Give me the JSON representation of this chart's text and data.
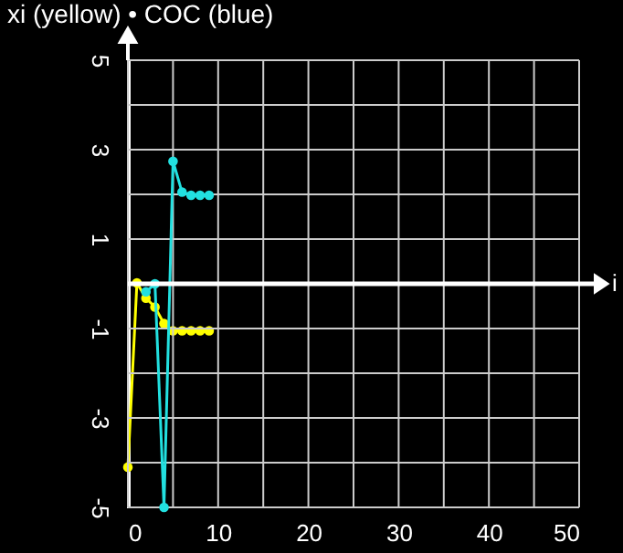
{
  "chart_data": {
    "type": "line",
    "title": "xi (yellow) • COC (blue)",
    "xlabel": "i",
    "xlim": [
      0,
      50
    ],
    "ylim": [
      -5,
      5
    ],
    "xticks": [
      0,
      {
        "value": 5,
        "label": null
      },
      10,
      {
        "value": 15,
        "label": null
      },
      20,
      {
        "value": 25,
        "label": null
      },
      30,
      {
        "value": 35,
        "label": null
      },
      40,
      {
        "value": 45,
        "label": null
      },
      50
    ],
    "yticks": [
      -5,
      {
        "value": -4,
        "label": null
      },
      -3,
      {
        "value": -2,
        "label": null
      },
      -1,
      {
        "value": 0,
        "label": null
      },
      1,
      {
        "value": 2,
        "label": null
      },
      3,
      {
        "value": 4,
        "label": null
      },
      5
    ],
    "grid": true,
    "marker": "circle",
    "line_style": "solid",
    "ref_lines": [
      {
        "axis": "y",
        "value": 0,
        "color": "#ffffff"
      }
    ],
    "series": [
      {
        "color": "#ffff00",
        "x": [
          0,
          1,
          2,
          3,
          4,
          5,
          6,
          7,
          8,
          9
        ],
        "values": [
          -4.1,
          0.02,
          -0.32,
          -0.52,
          -0.89,
          -1.05,
          -1.05,
          -1.05,
          -1.05,
          -1.05
        ]
      },
      {
        "color": "#22e0e0",
        "x": [
          2,
          3,
          4,
          5,
          6,
          7,
          8,
          9
        ],
        "values": [
          -0.18,
          0,
          -5,
          2.74,
          2.05,
          1.98,
          1.98,
          1.98
        ]
      }
    ]
  }
}
